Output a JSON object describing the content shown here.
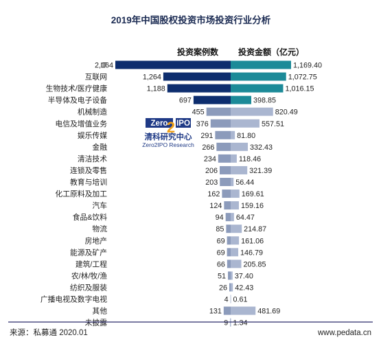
{
  "chart_data": {
    "type": "bar",
    "title": "2019年中国股权投资市场投资行业分析",
    "series": [
      {
        "name": "投资案例数",
        "direction": "left",
        "color": "#0d2d6e",
        "values": [
          2164,
          1264,
          1188,
          697,
          455,
          376,
          291,
          266,
          234,
          206,
          203,
          162,
          124,
          94,
          85,
          69,
          69,
          66,
          51,
          26,
          4,
          131,
          9
        ]
      },
      {
        "name": "投资金额（亿元）",
        "direction": "right",
        "color": "#1c8a98",
        "values": [
          1169.4,
          1072.75,
          1016.15,
          398.85,
          820.49,
          557.51,
          81.8,
          332.43,
          118.46,
          321.39,
          56.44,
          169.61,
          159.16,
          64.47,
          214.87,
          161.06,
          146.79,
          205.85,
          37.4,
          42.43,
          0.61,
          481.69,
          1.34
        ]
      }
    ],
    "categories": [
      "IT",
      "互联网",
      "生物技术/医疗健康",
      "半导体及电子设备",
      "机械制造",
      "电信及增值业务",
      "娱乐传媒",
      "金融",
      "清洁技术",
      "连锁及零售",
      "教育与培训",
      "化工原料及加工",
      "汽车",
      "食品&饮料",
      "物流",
      "房地产",
      "能源及矿产",
      "建筑/工程",
      "农/林/牧/渔",
      "纺织及服装",
      "广播电视及数字电视",
      "其他",
      "未披露"
    ],
    "labels_left": [
      "2,164",
      "1,264",
      "1,188",
      "697",
      "455",
      "376",
      "291",
      "266",
      "234",
      "206",
      "203",
      "162",
      "124",
      "94",
      "85",
      "69",
      "69",
      "66",
      "51",
      "26",
      "4",
      "131",
      "9"
    ],
    "labels_right": [
      "1,169.40",
      "1,072.75",
      "1,016.15",
      "398.85",
      "820.49",
      "557.51",
      "81.80",
      "332.43",
      "118.46",
      "321.39",
      "56.44",
      "169.61",
      "159.16",
      "64.47",
      "214.87",
      "161.06",
      "146.79",
      "205.85",
      "37.40",
      "42.43",
      "0.61",
      "481.69",
      "1.34"
    ],
    "top_dark_rows": 4,
    "colors": {
      "left_dark": "#0d2d6e",
      "left_light": "#8c9bbb",
      "right_dark": "#1c8a98",
      "right_light": "#aab6d0",
      "title": "#1a2a52"
    }
  },
  "logo": {
    "text_a": "Zero",
    "text_b": "IPO",
    "cn": "清科研究中心",
    "en": "Zero2IPO Research"
  },
  "footer": {
    "source": "来源：私募通 2020.01",
    "site": "www.pedata.cn"
  }
}
